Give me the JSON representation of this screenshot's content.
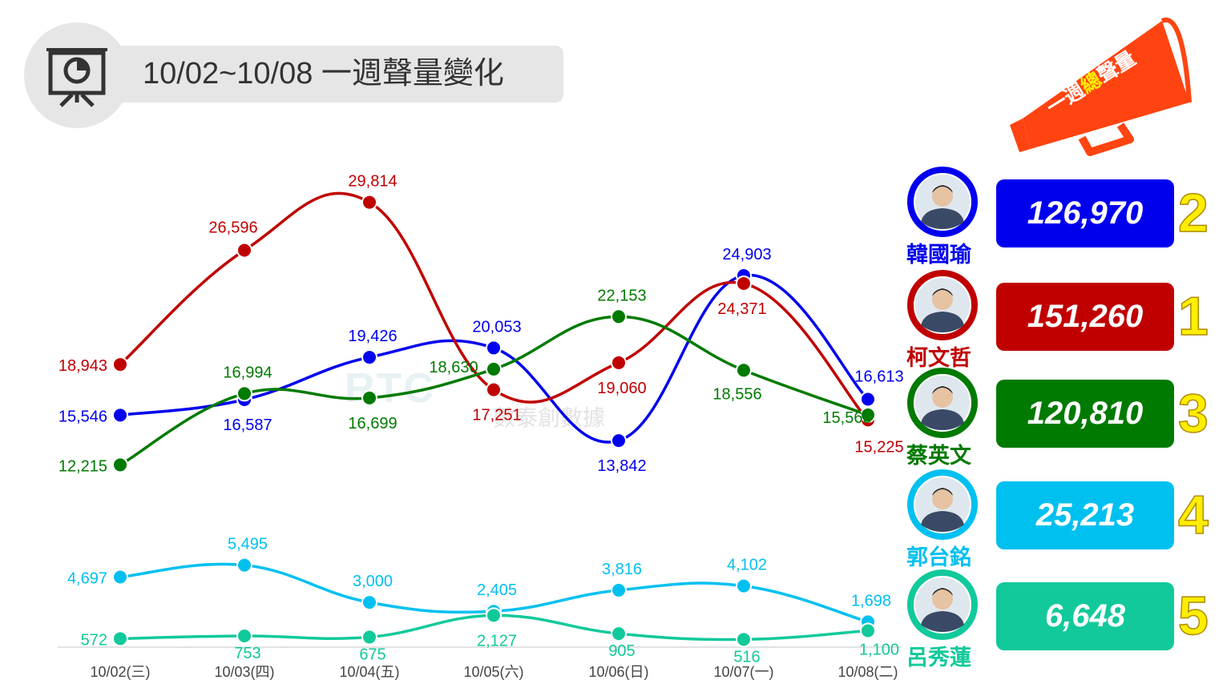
{
  "header": {
    "title": "10/02~10/08 一週聲量變化",
    "icon": "presentation-chart-icon"
  },
  "megaphone": {
    "text_prefix": "一週",
    "text_highlight": "總",
    "text_suffix": "聲量",
    "icon": "megaphone-icon",
    "color": "#ff4411"
  },
  "watermark": {
    "logo": "RTC",
    "text": "數泰創數據"
  },
  "chart_data": {
    "type": "line",
    "categories": [
      "10/02(三)",
      "10/03(四)",
      "10/04(五)",
      "10/05(六)",
      "10/06(日)",
      "10/07(一)",
      "10/08(二)"
    ],
    "series": [
      {
        "name": "韓國瑜",
        "color": "#0000ee",
        "values": [
          15546,
          16587,
          19426,
          20053,
          13842,
          24903,
          16613
        ]
      },
      {
        "name": "柯文哲",
        "color": "#c00000",
        "values": [
          18943,
          26596,
          29814,
          17251,
          19060,
          24371,
          15225
        ]
      },
      {
        "name": "蔡英文",
        "color": "#007a00",
        "values": [
          12215,
          16994,
          16699,
          18630,
          22153,
          18556,
          15563
        ]
      },
      {
        "name": "郭台銘",
        "color": "#00c0f0",
        "values": [
          4697,
          5495,
          3000,
          2405,
          3816,
          4102,
          1698
        ]
      },
      {
        "name": "呂秀蓮",
        "color": "#11c99a",
        "values": [
          572,
          753,
          675,
          2127,
          905,
          516,
          1100
        ]
      }
    ],
    "value_labels": [
      [
        "15,546",
        "16,587",
        "19,426",
        "20,053",
        "13,842",
        "24,903",
        "16,613"
      ],
      [
        "18,943",
        "26,596",
        "29,814",
        "17,251",
        "19,060",
        "24,371",
        "15,225"
      ],
      [
        "12,215",
        "16,994",
        "16,699",
        "18,630",
        "22,153",
        "18,556",
        "15,563"
      ],
      [
        "4,697",
        "5,495",
        "3,000",
        "2,405",
        "3,816",
        "4,102",
        "1,698"
      ],
      [
        "572",
        "753",
        "675",
        "2,127",
        "905",
        "516",
        "1,100"
      ]
    ],
    "grid": false,
    "legend": "right"
  },
  "candidates": [
    {
      "name": "韓國瑜",
      "total": "126,970",
      "rank": "2",
      "color": "#0000ee",
      "avatar_icon": "portrait-han-icon"
    },
    {
      "name": "柯文哲",
      "total": "151,260",
      "rank": "1",
      "color": "#c00000",
      "avatar_icon": "portrait-ko-icon"
    },
    {
      "name": "蔡英文",
      "total": "120,810",
      "rank": "3",
      "color": "#007a00",
      "avatar_icon": "portrait-tsai-icon"
    },
    {
      "name": "郭台銘",
      "total": "25,213",
      "rank": "4",
      "color": "#00c0f0",
      "avatar_icon": "portrait-gou-icon"
    },
    {
      "name": "呂秀蓮",
      "total": "6,648",
      "rank": "5",
      "color": "#11c99a",
      "avatar_icon": "portrait-lu-icon"
    }
  ]
}
